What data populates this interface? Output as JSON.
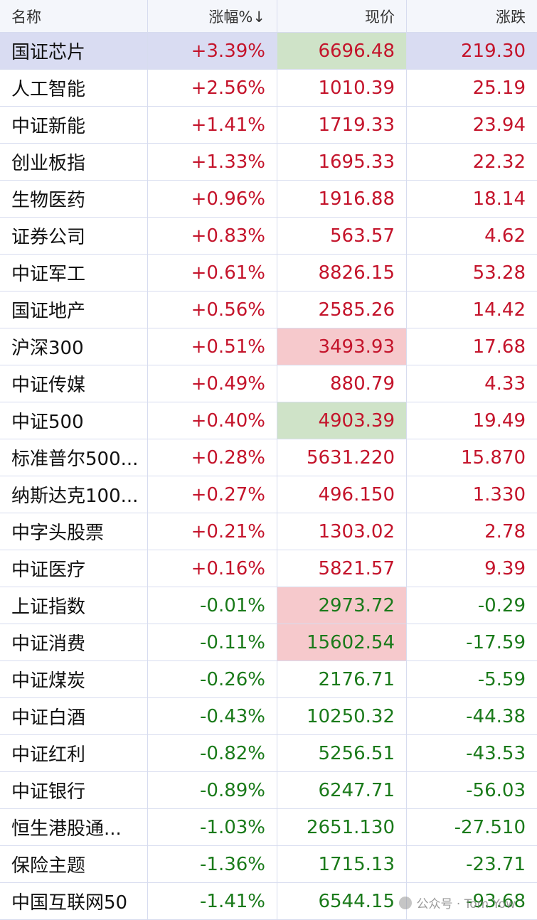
{
  "header": {
    "name": "名称",
    "pct": "涨幅%↓",
    "price": "现价",
    "change": "涨跌"
  },
  "rows": [
    {
      "name": "国证芯片",
      "pct": "+3.39%",
      "price": "6696.48",
      "change": "219.30",
      "dir": "up"
    },
    {
      "name": "人工智能",
      "pct": "+2.56%",
      "price": "1010.39",
      "change": "25.19",
      "dir": "up"
    },
    {
      "name": "中证新能",
      "pct": "+1.41%",
      "price": "1719.33",
      "change": "23.94",
      "dir": "up"
    },
    {
      "name": "创业板指",
      "pct": "+1.33%",
      "price": "1695.33",
      "change": "22.32",
      "dir": "up"
    },
    {
      "name": "生物医药",
      "pct": "+0.96%",
      "price": "1916.88",
      "change": "18.14",
      "dir": "up"
    },
    {
      "name": "证券公司",
      "pct": "+0.83%",
      "price": "563.57",
      "change": "4.62",
      "dir": "up"
    },
    {
      "name": "中证军工",
      "pct": "+0.61%",
      "price": "8826.15",
      "change": "53.28",
      "dir": "up"
    },
    {
      "name": "国证地产",
      "pct": "+0.56%",
      "price": "2585.26",
      "change": "14.42",
      "dir": "up"
    },
    {
      "name": "沪深300",
      "pct": "+0.51%",
      "price": "3493.93",
      "change": "17.68",
      "dir": "up"
    },
    {
      "name": "中证传媒",
      "pct": "+0.49%",
      "price": "880.79",
      "change": "4.33",
      "dir": "up"
    },
    {
      "name": "中证500",
      "pct": "+0.40%",
      "price": "4903.39",
      "change": "19.49",
      "dir": "up"
    },
    {
      "name": "标准普尔500...",
      "pct": "+0.28%",
      "price": "5631.220",
      "change": "15.870",
      "dir": "up"
    },
    {
      "name": "纳斯达克100...",
      "pct": "+0.27%",
      "price": "496.150",
      "change": "1.330",
      "dir": "up"
    },
    {
      "name": "中字头股票",
      "pct": "+0.21%",
      "price": "1303.02",
      "change": "2.78",
      "dir": "up"
    },
    {
      "name": "中证医疗",
      "pct": "+0.16%",
      "price": "5821.57",
      "change": "9.39",
      "dir": "up"
    },
    {
      "name": "上证指数",
      "pct": "-0.01%",
      "price": "2973.72",
      "change": "-0.29",
      "dir": "down"
    },
    {
      "name": "中证消费",
      "pct": "-0.11%",
      "price": "15602.54",
      "change": "-17.59",
      "dir": "down"
    },
    {
      "name": "中证煤炭",
      "pct": "-0.26%",
      "price": "2176.71",
      "change": "-5.59",
      "dir": "down"
    },
    {
      "name": "中证白酒",
      "pct": "-0.43%",
      "price": "10250.32",
      "change": "-44.38",
      "dir": "down"
    },
    {
      "name": "中证红利",
      "pct": "-0.82%",
      "price": "5256.51",
      "change": "-43.53",
      "dir": "down"
    },
    {
      "name": "中证银行",
      "pct": "-0.89%",
      "price": "6247.71",
      "change": "-56.03",
      "dir": "down"
    },
    {
      "name": "恒生港股通...",
      "pct": "-1.03%",
      "price": "2651.130",
      "change": "-27.510",
      "dir": "down"
    },
    {
      "name": "保险主题",
      "pct": "-1.36%",
      "price": "1715.13",
      "change": "-23.71",
      "dir": "down"
    },
    {
      "name": "中国互联网50",
      "pct": "-1.41%",
      "price": "6544.15",
      "change": "-93.68",
      "dir": "down"
    }
  ],
  "watermark": "公众号 · Tom Yow",
  "colors": {
    "up": "#c4142b",
    "down": "#1a7a1a",
    "selected_row": "#d9dcf2",
    "highlight_green": "#cfe3c8",
    "highlight_red": "#f6c9cc"
  }
}
